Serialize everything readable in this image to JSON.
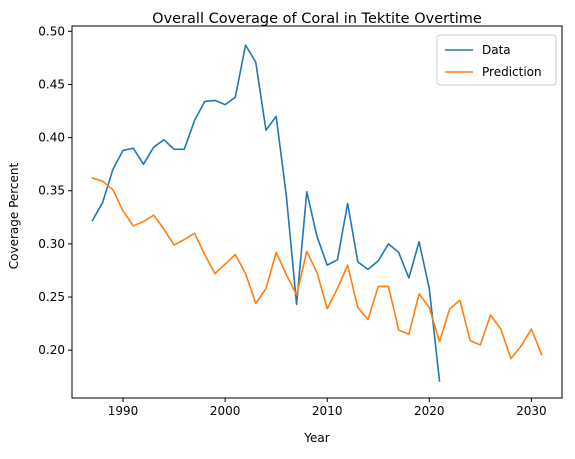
{
  "chart_data": {
    "type": "line",
    "title": "Overall Coverage of Coral in Tektite Overtime",
    "xlabel": "Year",
    "ylabel": "Coverage Percent",
    "xlim": [
      1985,
      2033
    ],
    "ylim": [
      0.155,
      0.505
    ],
    "xticks": [
      1990,
      2000,
      2010,
      2020,
      2030
    ],
    "xtick_labels": [
      "1990",
      "2000",
      "2010",
      "2020",
      "2030"
    ],
    "yticks": [
      0.2,
      0.25,
      0.3,
      0.35,
      0.4,
      0.45,
      0.5
    ],
    "ytick_labels": [
      "0.20",
      "0.25",
      "0.30",
      "0.35",
      "0.40",
      "0.45",
      "0.50"
    ],
    "grid": false,
    "legend": "top-right",
    "series": [
      {
        "name": "Data",
        "color": "#1f77b4",
        "x": [
          1987,
          1988,
          1989,
          1990,
          1991,
          1992,
          1993,
          1994,
          1995,
          1996,
          1997,
          1998,
          1999,
          2000,
          2001,
          2002,
          2003,
          2004,
          2005,
          2006,
          2007,
          2008,
          2009,
          2010,
          2011,
          2012,
          2013,
          2014,
          2015,
          2016,
          2017,
          2018,
          2019,
          2020,
          2021
        ],
        "values": [
          0.322,
          0.339,
          0.37,
          0.388,
          0.39,
          0.375,
          0.391,
          0.398,
          0.389,
          0.389,
          0.416,
          0.434,
          0.435,
          0.431,
          0.438,
          0.487,
          0.471,
          0.407,
          0.42,
          0.345,
          0.243,
          0.349,
          0.307,
          0.28,
          0.285,
          0.338,
          0.283,
          0.276,
          0.284,
          0.3,
          0.292,
          0.268,
          0.302,
          0.258,
          0.171
        ]
      },
      {
        "name": "Prediction",
        "color": "#ff7f0e",
        "x": [
          1987,
          1988,
          1989,
          1990,
          1991,
          1992,
          1993,
          1994,
          1995,
          1996,
          1997,
          1998,
          1999,
          2000,
          2001,
          2002,
          2003,
          2004,
          2005,
          2006,
          2007,
          2008,
          2009,
          2010,
          2011,
          2012,
          2013,
          2014,
          2015,
          2016,
          2017,
          2018,
          2019,
          2020,
          2021,
          2022,
          2023,
          2024,
          2025,
          2026,
          2027,
          2028,
          2029,
          2030,
          2031
        ],
        "values": [
          0.362,
          0.359,
          0.351,
          0.331,
          0.317,
          0.321,
          0.327,
          0.314,
          0.299,
          0.304,
          0.31,
          0.29,
          0.272,
          0.281,
          0.29,
          0.272,
          0.244,
          0.258,
          0.292,
          0.271,
          0.252,
          0.293,
          0.273,
          0.239,
          0.258,
          0.28,
          0.24,
          0.229,
          0.26,
          0.26,
          0.219,
          0.215,
          0.253,
          0.24,
          0.208,
          0.239,
          0.247,
          0.209,
          0.205,
          0.233,
          0.22,
          0.192,
          0.204,
          0.22,
          0.196
        ]
      }
    ]
  }
}
